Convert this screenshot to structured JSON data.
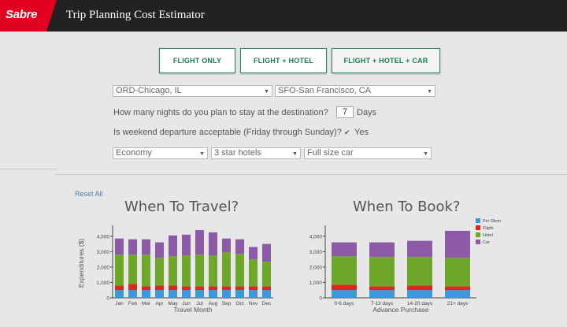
{
  "app": {
    "logo": "Sabre",
    "title": "Trip Planning Cost Estimator"
  },
  "tabs": [
    {
      "label": "FLIGHT ONLY"
    },
    {
      "label": "FLIGHT + HOTEL"
    },
    {
      "label": "FLIGHT + HOTEL + CAR",
      "selected": true
    }
  ],
  "form": {
    "origin": "ORD-Chicago, IL",
    "destination": "SFO-San Francisco, CA",
    "nights_question": "How many nights do you plan to stay at the destination?",
    "nights_value": "7",
    "nights_unit": "Days",
    "weekend_question": "Is weekend departure acceptable (Friday through Sunday)?",
    "weekend_checked": true,
    "weekend_answer": "Yes",
    "cabin": "Economy",
    "hotel": "3 star hotels",
    "car": "Full size car"
  },
  "reset_label": "Reset All",
  "colors": {
    "per_diem": "#3a9ad9",
    "flight": "#e0271f",
    "hotel": "#6ea72a",
    "car": "#8c5aa6",
    "accent": "#1f7a50",
    "logo": "#e4001f"
  },
  "chart_data": [
    {
      "type": "bar",
      "stacked": true,
      "title": "When To Travel?",
      "xlabel": "Travel Month",
      "ylabel": "Expenditures ($)",
      "ylim": [
        0,
        4500
      ],
      "yticks": [
        "0",
        "1,000",
        "2,000",
        "3,000",
        "4,000"
      ],
      "categories": [
        "Jan",
        "Feb",
        "Mar",
        "Apr",
        "May",
        "Jun",
        "Jul",
        "Aug",
        "Sep",
        "Oct",
        "Nov",
        "Dec"
      ],
      "series": [
        {
          "key": "per_diem",
          "values": [
            500,
            500,
            500,
            500,
            500,
            500,
            500,
            500,
            500,
            500,
            500,
            500
          ]
        },
        {
          "key": "flight",
          "values": [
            300,
            400,
            250,
            300,
            300,
            250,
            250,
            250,
            250,
            250,
            250,
            250
          ]
        },
        {
          "key": "hotel",
          "values": [
            2000,
            1900,
            2050,
            1800,
            1900,
            2000,
            2050,
            2000,
            2200,
            2100,
            1750,
            1600
          ]
        },
        {
          "key": "car",
          "values": [
            1050,
            1000,
            1000,
            1000,
            1350,
            1350,
            1600,
            1500,
            900,
            950,
            800,
            1150
          ]
        }
      ]
    },
    {
      "type": "bar",
      "stacked": true,
      "title": "When To Book?",
      "xlabel": "Advance Purchase",
      "ylabel": "",
      "ylim": [
        0,
        4500
      ],
      "yticks": [
        "0",
        "1,000",
        "2,000",
        "3,000",
        "4,000"
      ],
      "categories": [
        "0-6 days",
        "7-13 days",
        "14-20 days",
        "21+ days"
      ],
      "legend": [
        "Per Diem",
        "Flight",
        "Hotel",
        "Car"
      ],
      "legend_position": "top-right",
      "series": [
        {
          "name": "Per Diem",
          "key": "per_diem",
          "values": [
            500,
            500,
            500,
            500
          ]
        },
        {
          "name": "Flight",
          "key": "flight",
          "values": [
            350,
            250,
            300,
            250
          ]
        },
        {
          "name": "Hotel",
          "key": "hotel",
          "values": [
            1850,
            1900,
            1850,
            1850
          ]
        },
        {
          "name": "Car",
          "key": "car",
          "values": [
            900,
            950,
            1050,
            1750
          ]
        }
      ]
    }
  ]
}
